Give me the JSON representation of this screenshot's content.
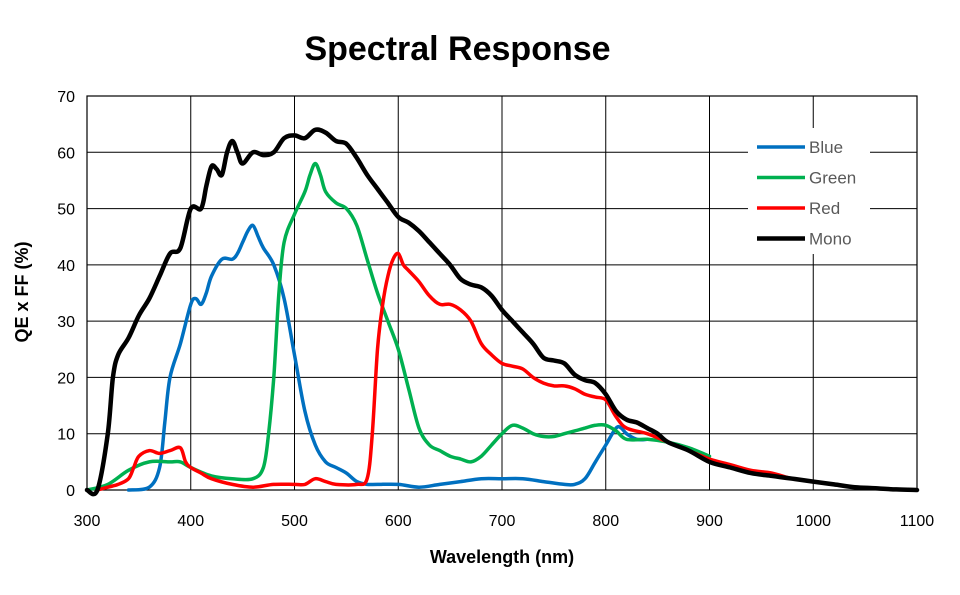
{
  "chart_data": {
    "type": "line",
    "title": "Spectral Response",
    "xlabel": "Wavelength (nm)",
    "ylabel": "QE x FF (%)",
    "xlim": [
      300,
      1100
    ],
    "ylim": [
      0,
      70
    ],
    "x_ticks": [
      300,
      400,
      500,
      600,
      700,
      800,
      900,
      1000,
      1100
    ],
    "y_ticks": [
      0,
      10,
      20,
      30,
      40,
      50,
      60,
      70
    ],
    "grid": true,
    "legend_position": "top-right",
    "series": [
      {
        "name": "Blue",
        "color": "#0070C0",
        "points": [
          [
            340,
            0
          ],
          [
            360,
            0.5
          ],
          [
            370,
            4
          ],
          [
            375,
            12
          ],
          [
            380,
            20
          ],
          [
            390,
            26
          ],
          [
            400,
            33
          ],
          [
            405,
            34
          ],
          [
            410,
            33
          ],
          [
            415,
            35
          ],
          [
            420,
            38
          ],
          [
            430,
            41
          ],
          [
            440,
            41
          ],
          [
            445,
            42
          ],
          [
            450,
            44
          ],
          [
            455,
            46
          ],
          [
            460,
            47
          ],
          [
            465,
            45
          ],
          [
            470,
            43
          ],
          [
            480,
            40
          ],
          [
            490,
            34
          ],
          [
            500,
            24
          ],
          [
            510,
            14
          ],
          [
            520,
            8
          ],
          [
            530,
            5
          ],
          [
            540,
            4
          ],
          [
            550,
            3
          ],
          [
            560,
            1.5
          ],
          [
            570,
            1
          ],
          [
            580,
            1
          ],
          [
            600,
            1
          ],
          [
            620,
            0.5
          ],
          [
            640,
            1
          ],
          [
            660,
            1.5
          ],
          [
            680,
            2
          ],
          [
            700,
            2
          ],
          [
            720,
            2
          ],
          [
            740,
            1.5
          ],
          [
            760,
            1
          ],
          [
            770,
            1
          ],
          [
            780,
            2
          ],
          [
            790,
            5
          ],
          [
            800,
            8
          ],
          [
            810,
            11
          ],
          [
            815,
            11
          ],
          [
            820,
            10
          ],
          [
            830,
            9
          ],
          [
            840,
            9
          ]
        ]
      },
      {
        "name": "Green",
        "color": "#00B050",
        "points": [
          [
            300,
            0
          ],
          [
            320,
            1
          ],
          [
            340,
            3.5
          ],
          [
            360,
            5
          ],
          [
            380,
            5
          ],
          [
            390,
            5
          ],
          [
            400,
            4
          ],
          [
            420,
            2.5
          ],
          [
            440,
            2
          ],
          [
            460,
            2
          ],
          [
            470,
            4
          ],
          [
            475,
            10
          ],
          [
            480,
            20
          ],
          [
            485,
            35
          ],
          [
            490,
            44
          ],
          [
            500,
            49
          ],
          [
            510,
            53
          ],
          [
            515,
            56
          ],
          [
            520,
            58
          ],
          [
            525,
            56
          ],
          [
            530,
            53
          ],
          [
            540,
            51
          ],
          [
            550,
            50
          ],
          [
            560,
            47
          ],
          [
            570,
            41
          ],
          [
            580,
            35
          ],
          [
            590,
            30
          ],
          [
            600,
            25
          ],
          [
            610,
            18
          ],
          [
            620,
            11
          ],
          [
            630,
            8
          ],
          [
            640,
            7
          ],
          [
            650,
            6
          ],
          [
            660,
            5.5
          ],
          [
            670,
            5
          ],
          [
            680,
            6
          ],
          [
            690,
            8
          ],
          [
            700,
            10
          ],
          [
            710,
            11.5
          ],
          [
            720,
            11
          ],
          [
            730,
            10
          ],
          [
            740,
            9.5
          ],
          [
            750,
            9.5
          ],
          [
            760,
            10
          ],
          [
            770,
            10.5
          ],
          [
            780,
            11
          ],
          [
            790,
            11.5
          ],
          [
            800,
            11.5
          ],
          [
            810,
            10.5
          ],
          [
            820,
            9
          ],
          [
            840,
            9
          ],
          [
            860,
            8.5
          ],
          [
            880,
            7.5
          ],
          [
            900,
            6
          ]
        ]
      },
      {
        "name": "Red",
        "color": "#FF0000",
        "points": [
          [
            310,
            0
          ],
          [
            320,
            0.5
          ],
          [
            330,
            1
          ],
          [
            340,
            2
          ],
          [
            345,
            4
          ],
          [
            350,
            6
          ],
          [
            360,
            7
          ],
          [
            370,
            6.5
          ],
          [
            380,
            7
          ],
          [
            390,
            7.5
          ],
          [
            395,
            5
          ],
          [
            400,
            4
          ],
          [
            410,
            3
          ],
          [
            420,
            2
          ],
          [
            440,
            1
          ],
          [
            460,
            0.5
          ],
          [
            480,
            1
          ],
          [
            500,
            1
          ],
          [
            510,
            1
          ],
          [
            520,
            2
          ],
          [
            530,
            1.5
          ],
          [
            540,
            1
          ],
          [
            560,
            1
          ],
          [
            570,
            2
          ],
          [
            575,
            10
          ],
          [
            580,
            25
          ],
          [
            585,
            33
          ],
          [
            590,
            38
          ],
          [
            595,
            41
          ],
          [
            600,
            42
          ],
          [
            605,
            40
          ],
          [
            610,
            39
          ],
          [
            620,
            37
          ],
          [
            630,
            34.5
          ],
          [
            640,
            33
          ],
          [
            650,
            33
          ],
          [
            660,
            32
          ],
          [
            670,
            30
          ],
          [
            680,
            26
          ],
          [
            690,
            24
          ],
          [
            700,
            22.5
          ],
          [
            710,
            22
          ],
          [
            720,
            21.5
          ],
          [
            730,
            20
          ],
          [
            740,
            19
          ],
          [
            750,
            18.5
          ],
          [
            760,
            18.5
          ],
          [
            770,
            18
          ],
          [
            780,
            17
          ],
          [
            790,
            16.5
          ],
          [
            800,
            16
          ],
          [
            810,
            13
          ],
          [
            820,
            11
          ],
          [
            840,
            10
          ],
          [
            860,
            8.5
          ],
          [
            880,
            7
          ],
          [
            900,
            5.5
          ],
          [
            920,
            4.5
          ],
          [
            940,
            3.5
          ],
          [
            960,
            3
          ],
          [
            980,
            2
          ],
          [
            1000,
            1.5
          ],
          [
            1020,
            1
          ]
        ]
      },
      {
        "name": "Mono",
        "color": "#000000",
        "points": [
          [
            300,
            0
          ],
          [
            310,
            0
          ],
          [
            320,
            10
          ],
          [
            325,
            20
          ],
          [
            330,
            24
          ],
          [
            340,
            27
          ],
          [
            350,
            31
          ],
          [
            360,
            34
          ],
          [
            370,
            38
          ],
          [
            380,
            42
          ],
          [
            390,
            43
          ],
          [
            400,
            50
          ],
          [
            410,
            50
          ],
          [
            415,
            54
          ],
          [
            420,
            57.5
          ],
          [
            425,
            57
          ],
          [
            430,
            56
          ],
          [
            435,
            60
          ],
          [
            440,
            62
          ],
          [
            445,
            60
          ],
          [
            450,
            58
          ],
          [
            460,
            60
          ],
          [
            470,
            59.5
          ],
          [
            480,
            60
          ],
          [
            490,
            62.5
          ],
          [
            500,
            63
          ],
          [
            510,
            62.5
          ],
          [
            520,
            64
          ],
          [
            530,
            63.5
          ],
          [
            540,
            62
          ],
          [
            550,
            61.5
          ],
          [
            560,
            59
          ],
          [
            570,
            56
          ],
          [
            580,
            53.5
          ],
          [
            590,
            51
          ],
          [
            600,
            48.5
          ],
          [
            610,
            47.5
          ],
          [
            620,
            46
          ],
          [
            630,
            44
          ],
          [
            640,
            42
          ],
          [
            650,
            40
          ],
          [
            660,
            37.5
          ],
          [
            670,
            36.5
          ],
          [
            680,
            36
          ],
          [
            690,
            34.5
          ],
          [
            700,
            32
          ],
          [
            710,
            30
          ],
          [
            720,
            28
          ],
          [
            730,
            26
          ],
          [
            740,
            23.5
          ],
          [
            750,
            23
          ],
          [
            760,
            22.5
          ],
          [
            770,
            20.5
          ],
          [
            780,
            19.5
          ],
          [
            790,
            19
          ],
          [
            800,
            17
          ],
          [
            810,
            14
          ],
          [
            820,
            12.5
          ],
          [
            830,
            12
          ],
          [
            840,
            11
          ],
          [
            850,
            10
          ],
          [
            860,
            8.5
          ],
          [
            880,
            7
          ],
          [
            900,
            5
          ],
          [
            920,
            4
          ],
          [
            940,
            3
          ],
          [
            960,
            2.5
          ],
          [
            980,
            2
          ],
          [
            1000,
            1.5
          ],
          [
            1020,
            1
          ],
          [
            1040,
            0.5
          ],
          [
            1060,
            0.3
          ],
          [
            1080,
            0.1
          ],
          [
            1100,
            0
          ]
        ]
      }
    ]
  }
}
